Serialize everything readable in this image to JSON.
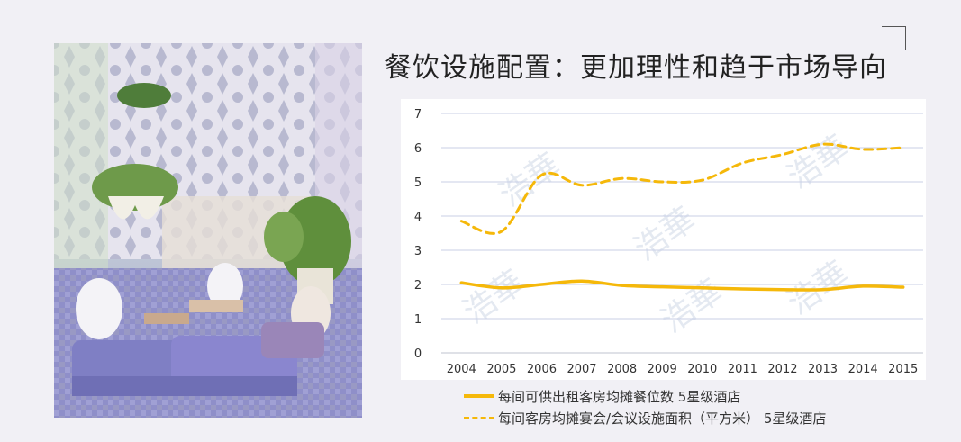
{
  "header": {
    "title": "餐饮设施配置：更加理性和趋于市场导向"
  },
  "chart_data": {
    "type": "line",
    "categories": [
      "2004",
      "2005",
      "2006",
      "2007",
      "2008",
      "2009",
      "2010",
      "2011",
      "2012",
      "2013",
      "2014",
      "2015"
    ],
    "series": [
      {
        "name": "每间可供出租客房均摊餐位数 5星级酒店",
        "style": "solid",
        "color": "#f5b80a",
        "values": [
          2.05,
          1.9,
          2.0,
          2.1,
          1.97,
          1.93,
          1.9,
          1.87,
          1.85,
          1.85,
          1.95,
          1.92
        ]
      },
      {
        "name": "每间客房均摊宴会/会议设施面积（平方米） 5星级酒店",
        "style": "dashed",
        "color": "#f5b80a",
        "values": [
          3.85,
          3.55,
          5.2,
          4.9,
          5.1,
          5.0,
          5.05,
          5.55,
          5.8,
          6.1,
          5.95,
          6.0
        ]
      }
    ],
    "yticks": [
      0,
      1,
      2,
      3,
      4,
      5,
      6,
      7
    ],
    "ylim": [
      0,
      7
    ],
    "grid": true,
    "legend_position": "bottom",
    "watermark": "浩華"
  }
}
